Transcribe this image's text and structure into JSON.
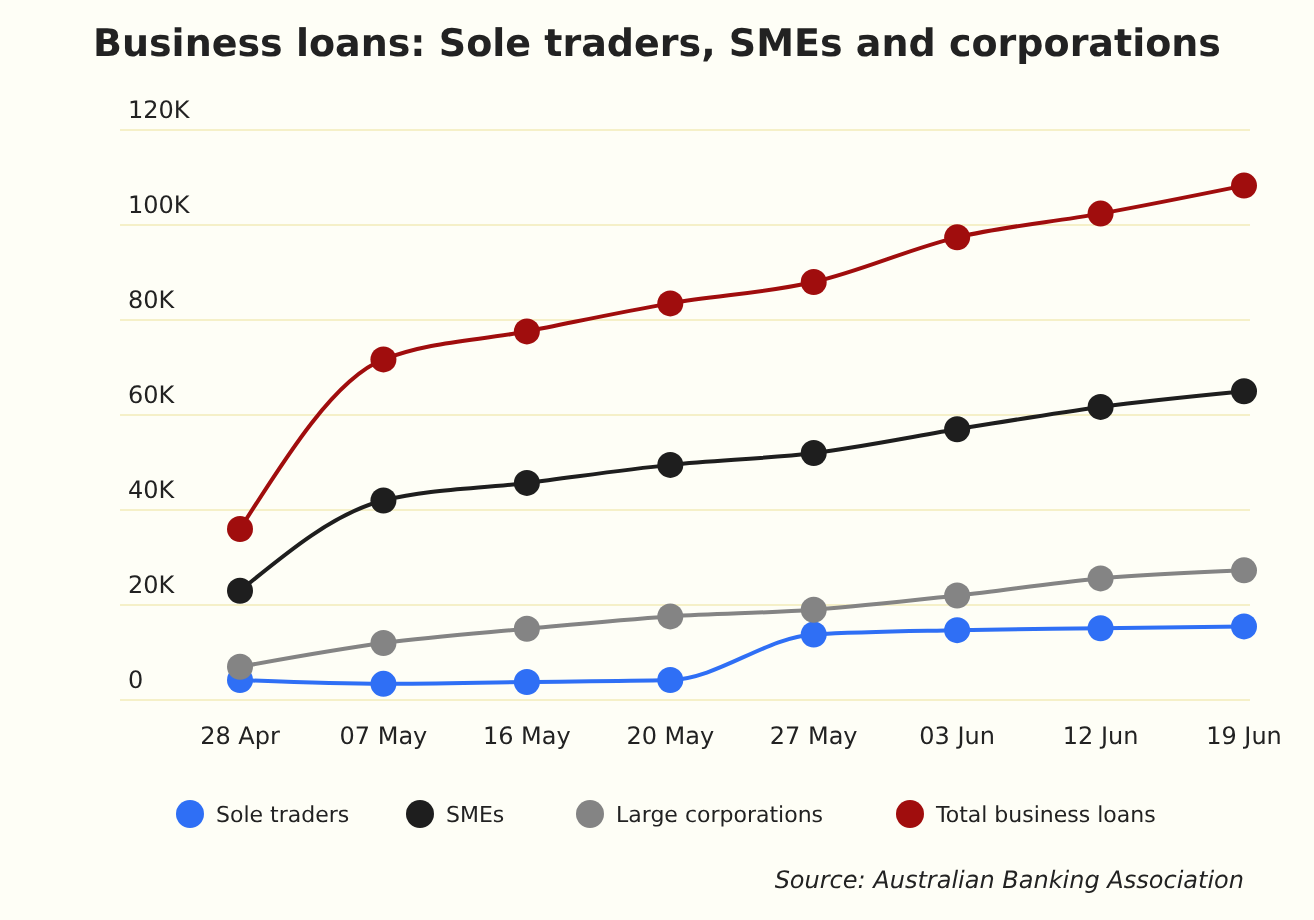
{
  "chart_data": {
    "type": "line",
    "title": "Business loans: Sole traders, SMEs and corporations",
    "categories": [
      "28 Apr",
      "07 May",
      "16 May",
      "20 May",
      "27 May",
      "03 Jun",
      "12 Jun",
      "19 Jun"
    ],
    "series": [
      {
        "name": "Sole traders",
        "color": "#2f6ff5",
        "values": [
          4200,
          3400,
          3800,
          4200,
          13800,
          14700,
          15100,
          15500
        ]
      },
      {
        "name": "SMEs",
        "color": "#1e1e1e",
        "values": [
          23000,
          42000,
          45700,
          49500,
          52000,
          57000,
          61700,
          65000
        ]
      },
      {
        "name": "Large corporations",
        "color": "#848484",
        "values": [
          7000,
          12000,
          15000,
          17600,
          19000,
          22000,
          25600,
          27300
        ]
      },
      {
        "name": "Total business loans",
        "color": "#a00d0d",
        "values": [
          36000,
          71700,
          77600,
          83500,
          88000,
          97400,
          102400,
          108300
        ]
      }
    ],
    "ylim": [
      0,
      120000
    ],
    "yticks": [
      {
        "value": 0,
        "label": "0"
      },
      {
        "value": 20000,
        "label": "20K"
      },
      {
        "value": 40000,
        "label": "40K"
      },
      {
        "value": 60000,
        "label": "60K"
      },
      {
        "value": 80000,
        "label": "80K"
      },
      {
        "value": 100000,
        "label": "100K"
      },
      {
        "value": 120000,
        "label": "120K"
      }
    ],
    "grid": "y",
    "legend": "bottom",
    "marker": "circle",
    "line_style": "solid",
    "annotations": [
      "Source: Australian Banking Association"
    ]
  }
}
